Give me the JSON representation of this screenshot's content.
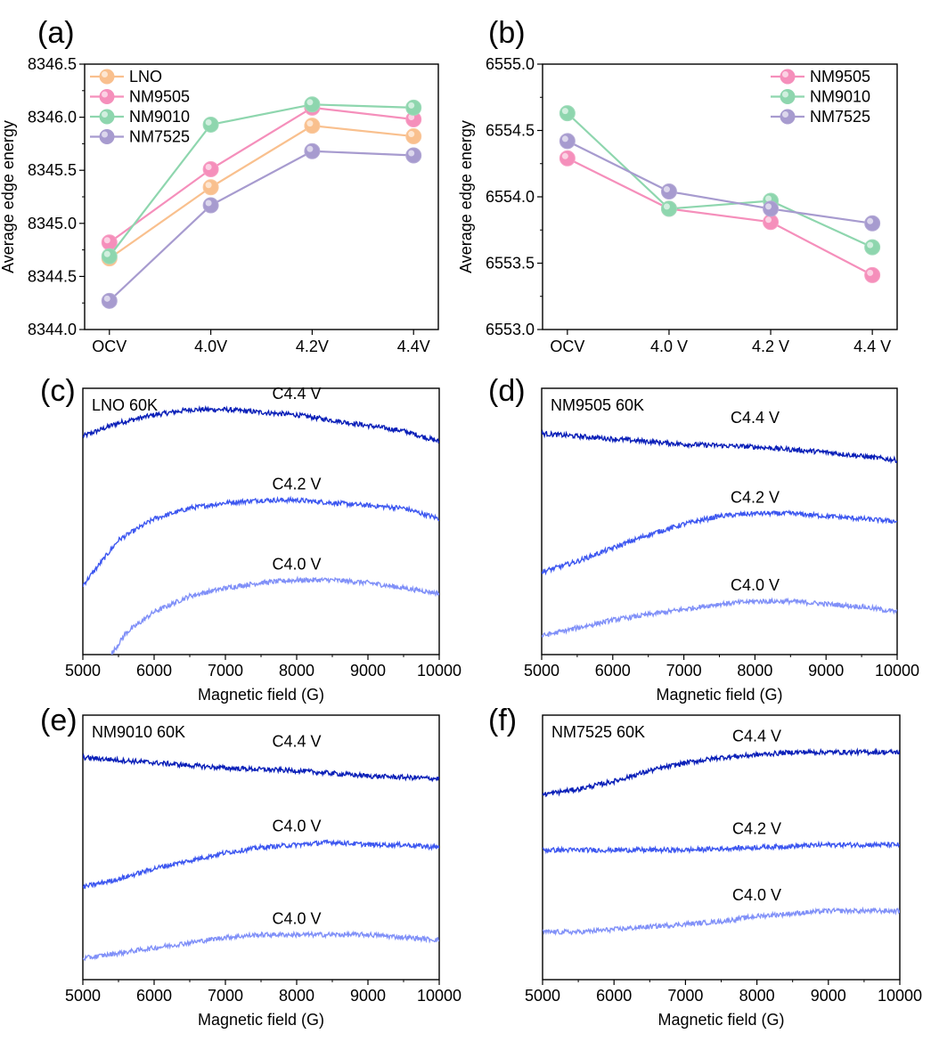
{
  "chart_data": [
    {
      "panel_label": "(a)",
      "type": "line",
      "categories": [
        "OCV",
        "4.0V",
        "4.2V",
        "4.4V"
      ],
      "ylabel": "Average edge energy",
      "ylim": [
        8344.0,
        8346.5
      ],
      "yticks": [
        "8344.0",
        "8344.5",
        "8345.0",
        "8345.5",
        "8346.0",
        "8346.5"
      ],
      "legend_position": "top-left",
      "series": [
        {
          "name": "LNO",
          "color": "#F9C08E",
          "values": [
            8344.67,
            8345.34,
            8345.92,
            8345.82
          ]
        },
        {
          "name": "NM9505",
          "color": "#F58FBB",
          "values": [
            8344.82,
            8345.51,
            8346.09,
            8345.98
          ]
        },
        {
          "name": "NM9010",
          "color": "#8ED6AE",
          "values": [
            8344.69,
            8345.93,
            8346.12,
            8346.09
          ]
        },
        {
          "name": "NM7525",
          "color": "#A79BCF",
          "values": [
            8344.27,
            8345.17,
            8345.68,
            8345.64
          ]
        }
      ]
    },
    {
      "panel_label": "(b)",
      "type": "line",
      "categories": [
        "OCV",
        "4.0 V",
        "4.2 V",
        "4.4 V"
      ],
      "ylabel": "Average edge energy",
      "ylim": [
        6553.0,
        6555.0
      ],
      "yticks": [
        "6553.0",
        "6553.5",
        "6554.0",
        "6554.5",
        "6555.0"
      ],
      "legend_position": "top-right",
      "series": [
        {
          "name": "NM9505",
          "color": "#F58FBB",
          "values": [
            6554.29,
            6553.91,
            6553.81,
            6553.41
          ]
        },
        {
          "name": "NM9010",
          "color": "#8ED6AE",
          "values": [
            6554.63,
            6553.91,
            6553.97,
            6553.62
          ]
        },
        {
          "name": "NM7525",
          "color": "#A79BCF",
          "values": [
            6554.42,
            6554.04,
            6553.91,
            6553.8
          ]
        }
      ]
    },
    {
      "panel_label": "(c)",
      "type": "line",
      "title": "LNO 60K",
      "xlabel": "Magnetic field (G)",
      "xlim": [
        5000,
        10000
      ],
      "xticks": [
        "5000",
        "6000",
        "7000",
        "8000",
        "9000",
        "10000"
      ],
      "series": [
        {
          "name": "C4.4 V",
          "color": "#0A1FB8",
          "x": [
            5000,
            5500,
            6000,
            6500,
            7000,
            7500,
            8000,
            8500,
            9000,
            9500,
            10000
          ],
          "values": [
            0.82,
            0.87,
            0.9,
            0.92,
            0.92,
            0.91,
            0.9,
            0.88,
            0.86,
            0.84,
            0.8
          ]
        },
        {
          "name": "C4.2 V",
          "color": "#3D57F0",
          "x": [
            5000,
            5500,
            6000,
            6500,
            7000,
            7500,
            8000,
            8500,
            9000,
            9500,
            10000
          ],
          "values": [
            0.26,
            0.43,
            0.51,
            0.55,
            0.57,
            0.58,
            0.58,
            0.57,
            0.56,
            0.55,
            0.51
          ]
        },
        {
          "name": "C4.0 V",
          "color": "#8090F8",
          "x": [
            5400,
            5600,
            6000,
            6500,
            7000,
            7500,
            8000,
            8500,
            9000,
            9500,
            10000
          ],
          "values": [
            0.0,
            0.08,
            0.16,
            0.22,
            0.25,
            0.27,
            0.28,
            0.28,
            0.27,
            0.25,
            0.23
          ]
        }
      ]
    },
    {
      "panel_label": "(d)",
      "type": "line",
      "title": "NM9505 60K",
      "xlabel": "Magnetic field (G)",
      "xlim": [
        5000,
        10000
      ],
      "xticks": [
        "5000",
        "6000",
        "7000",
        "8000",
        "9000",
        "10000"
      ],
      "series": [
        {
          "name": "C4.4 V",
          "color": "#0A1FB8",
          "x": [
            5000,
            6000,
            7000,
            8000,
            9000,
            10000
          ],
          "values": [
            0.83,
            0.81,
            0.79,
            0.78,
            0.76,
            0.73
          ]
        },
        {
          "name": "C4.2 V",
          "color": "#3D57F0",
          "x": [
            5000,
            5500,
            6000,
            6500,
            7000,
            7500,
            8000,
            8500,
            9000,
            9500,
            10000
          ],
          "values": [
            0.31,
            0.35,
            0.4,
            0.45,
            0.49,
            0.52,
            0.53,
            0.53,
            0.52,
            0.51,
            0.5
          ]
        },
        {
          "name": "C4.0 V",
          "color": "#8090F8",
          "x": [
            5000,
            5500,
            6000,
            6500,
            7000,
            7500,
            8000,
            8500,
            9000,
            9500,
            10000
          ],
          "values": [
            0.07,
            0.1,
            0.13,
            0.15,
            0.17,
            0.19,
            0.2,
            0.2,
            0.19,
            0.18,
            0.16
          ]
        }
      ]
    },
    {
      "panel_label": "(e)",
      "type": "line",
      "title": "NM9010 60K",
      "xlabel": "Magnetic field (G)",
      "xlim": [
        5000,
        10000
      ],
      "xticks": [
        "5000",
        "6000",
        "7000",
        "8000",
        "9000",
        "10000"
      ],
      "series": [
        {
          "name": "C4.4 V",
          "color": "#0A1FB8",
          "x": [
            5000,
            6000,
            7000,
            8000,
            9000,
            10000
          ],
          "values": [
            0.84,
            0.82,
            0.8,
            0.79,
            0.77,
            0.76
          ]
        },
        {
          "name": "C4.0 V",
          "color": "#3D57F0",
          "x": [
            5000,
            5500,
            6000,
            6500,
            7000,
            7500,
            8000,
            8500,
            9000,
            9500,
            10000
          ],
          "values": [
            0.35,
            0.38,
            0.42,
            0.45,
            0.48,
            0.5,
            0.51,
            0.52,
            0.51,
            0.51,
            0.5
          ]
        },
        {
          "name": "C4.0 V",
          "color": "#8090F8",
          "x": [
            5000,
            5500,
            6000,
            6500,
            7000,
            7500,
            8000,
            8500,
            9000,
            9500,
            10000
          ],
          "values": [
            0.08,
            0.1,
            0.12,
            0.14,
            0.16,
            0.17,
            0.17,
            0.17,
            0.17,
            0.16,
            0.15
          ]
        }
      ]
    },
    {
      "panel_label": "(f)",
      "type": "line",
      "title": "NM7525 60K",
      "xlabel": "Magnetic field (G)",
      "xlim": [
        5000,
        10000
      ],
      "xticks": [
        "5000",
        "6000",
        "7000",
        "8000",
        "9000",
        "10000"
      ],
      "series": [
        {
          "name": "C4.4 V",
          "color": "#0A1FB8",
          "x": [
            5000,
            5500,
            6000,
            6500,
            7000,
            7500,
            8000,
            8500,
            9000,
            9500,
            10000
          ],
          "values": [
            0.7,
            0.72,
            0.75,
            0.79,
            0.82,
            0.84,
            0.85,
            0.86,
            0.86,
            0.86,
            0.86
          ]
        },
        {
          "name": "C4.2 V",
          "color": "#3D57F0",
          "x": [
            5000,
            6000,
            7000,
            8000,
            9000,
            10000
          ],
          "values": [
            0.49,
            0.49,
            0.49,
            0.5,
            0.51,
            0.51
          ]
        },
        {
          "name": "C4.0 V",
          "color": "#8090F8",
          "x": [
            5000,
            5500,
            6000,
            6500,
            7000,
            7500,
            8000,
            8500,
            9000,
            9500,
            10000
          ],
          "values": [
            0.18,
            0.18,
            0.19,
            0.2,
            0.21,
            0.22,
            0.24,
            0.25,
            0.26,
            0.26,
            0.26
          ]
        }
      ]
    }
  ]
}
